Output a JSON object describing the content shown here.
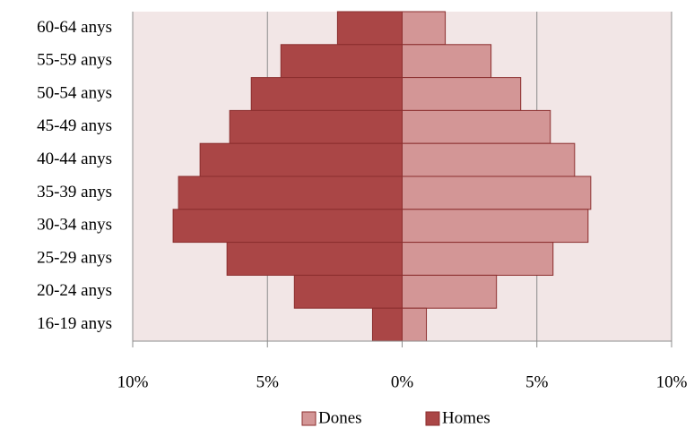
{
  "chart_data": {
    "type": "pyramid",
    "categories": [
      "60-64 anys",
      "55-59 anys",
      "50-54 anys",
      "45-49 anys",
      "40-44 anys",
      "35-39 anys",
      "30-34 anys",
      "25-29 anys",
      "20-24 anys",
      "16-19 anys"
    ],
    "series": [
      {
        "name": "Dones",
        "color": "#d39696",
        "values": [
          1.6,
          3.3,
          4.4,
          5.5,
          6.4,
          7.0,
          6.9,
          5.6,
          3.5,
          0.9
        ]
      },
      {
        "name": "Homes",
        "color": "#aa4646",
        "values": [
          -2.4,
          -4.5,
          -5.6,
          -6.4,
          -7.5,
          -8.3,
          -8.5,
          -6.5,
          -4.0,
          -1.1
        ]
      }
    ],
    "xlim": [
      -10,
      10
    ],
    "xticks": [
      {
        "value": -10,
        "label": "10%"
      },
      {
        "value": -5,
        "label": "5%"
      },
      {
        "value": 0,
        "label": "0%"
      },
      {
        "value": 5,
        "label": "5%"
      },
      {
        "value": 10,
        "label": "10%"
      }
    ],
    "grid": true,
    "legend": "bottom"
  }
}
